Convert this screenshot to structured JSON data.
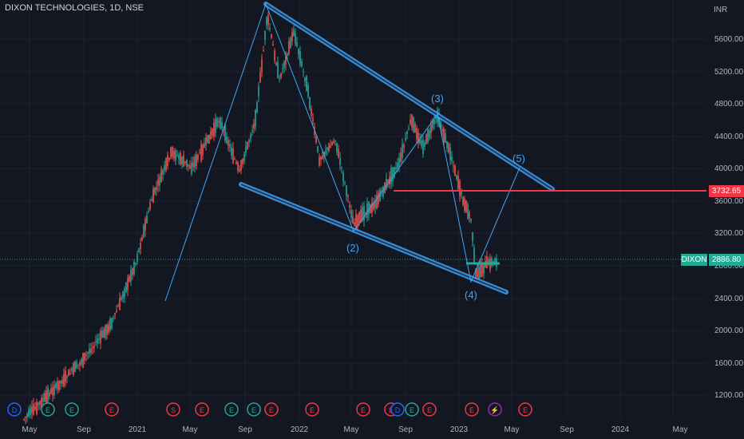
{
  "header": {
    "symbol_title": "DIXON TECHNOLOGIES, 1D, NSE",
    "currency": "INR"
  },
  "price_axis": {
    "ticks": [
      "5600.00",
      "5200.00",
      "4800.00",
      "4400.00",
      "4000.00",
      "3600.00",
      "3200.00",
      "2800.00",
      "2400.00",
      "2000.00",
      "1600.00",
      "1200.00"
    ]
  },
  "time_axis": {
    "labels": [
      "May",
      "Sep",
      "2021",
      "May",
      "Sep",
      "2022",
      "May",
      "Sep",
      "2023",
      "May",
      "Sep",
      "2024",
      "May"
    ]
  },
  "markers": {
    "resistance_price": "3732.65",
    "last_symbol": "DIXON",
    "last_price": "2886.80"
  },
  "wave_labels": [
    "(3)",
    "(5)",
    "(2)",
    "(4)"
  ],
  "event_icons": [
    "D",
    "E",
    "E",
    "E",
    "S",
    "E",
    "E",
    "E",
    "E",
    "D",
    "E",
    "E",
    "E",
    "E",
    "E",
    "D",
    "E",
    "E",
    "E",
    "E",
    "lightning",
    "E"
  ],
  "colors": {
    "bg": "#131722",
    "up": "#26a69a",
    "down": "#ef5350",
    "channel": "#42a5f5",
    "resistance": "#f23645",
    "grid": "#1e222d"
  }
}
